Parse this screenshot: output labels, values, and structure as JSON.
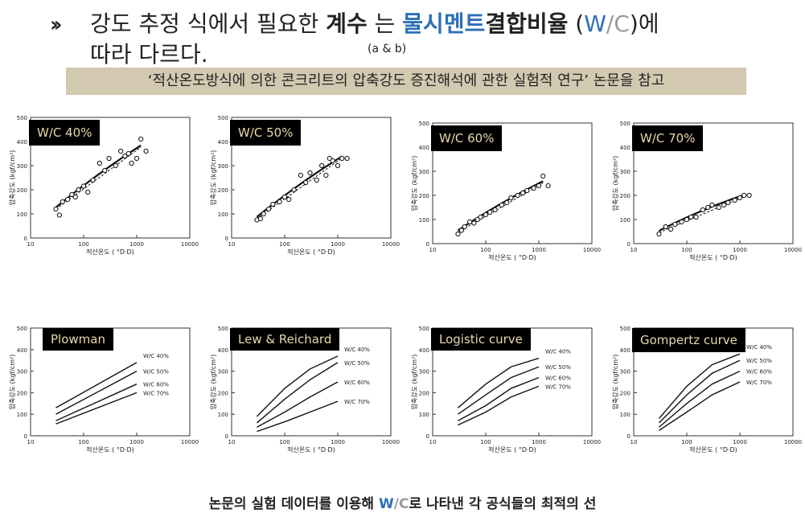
{
  "header": {
    "arrow": "››",
    "line1_pre": "강도 추정 식에서 필요한 ",
    "line1_bold": "계수",
    "line1_mid": " 는  ",
    "line1_blue1": "물시멘트",
    "line1_bold2": "결합비율",
    "line1_wc_open": "  (",
    "line1_wc_w": "W",
    "line1_wc_slash": "/",
    "line1_wc_c": "C",
    "line1_wc_close": ")에",
    "line2": "따라 다르다.",
    "sup": "(a & b)"
  },
  "banner": "‘적산온도방식에 의한 콘크리트의 압축강도 증진해석에 관한 실험적 연구’ 논문을 참고",
  "top_panels": [
    {
      "label": "W/C 40%"
    },
    {
      "label": "W/C 50%"
    },
    {
      "label": "W/C 60%"
    },
    {
      "label": "W/C 70%"
    }
  ],
  "bottom_panels": [
    {
      "label": "Plowman"
    },
    {
      "label": "Lew & Reichard"
    },
    {
      "label": "Logistic curve"
    },
    {
      "label": "Gompertz curve"
    }
  ],
  "axes": {
    "ylabel": "압축강도 (kgf/cm²)",
    "xlabel": "적산온도 ( °D·D)",
    "yticks": [
      "0",
      "100",
      "200",
      "300",
      "400",
      "500"
    ],
    "xticks": [
      "10",
      "100",
      "1000",
      "10000"
    ],
    "series_labels": [
      "W/C 40%",
      "W/C 50%",
      "W/C 60%",
      "W/C 70%"
    ]
  },
  "footer": {
    "pre": "논문의 실험 데이터를 이용해 ",
    "w": "W",
    "slash": "/",
    "c": "C",
    "post": "로 나타낸 각 공식들의 최적의 선"
  },
  "chart_data": [
    {
      "type": "scatter",
      "title": "W/C 40%",
      "xlabel": "적산온도 ( °D·D)",
      "ylabel": "압축강도 (kgf/cm²)",
      "x_scale": "log",
      "xlim": [
        10,
        10000
      ],
      "ylim": [
        0,
        500
      ],
      "x": [
        30,
        35,
        40,
        50,
        60,
        70,
        80,
        100,
        120,
        150,
        200,
        250,
        300,
        400,
        500,
        600,
        700,
        800,
        1000,
        1200,
        1500
      ],
      "y": [
        120,
        95,
        150,
        160,
        180,
        170,
        200,
        215,
        190,
        240,
        310,
        280,
        330,
        300,
        360,
        340,
        350,
        310,
        330,
        410,
        360
      ]
    },
    {
      "type": "scatter",
      "title": "W/C 50%",
      "xlabel": "적산온도 ( °D·D)",
      "ylabel": "압축강도 (kgf/cm²)",
      "x_scale": "log",
      "xlim": [
        10,
        10000
      ],
      "ylim": [
        0,
        500
      ],
      "x": [
        30,
        35,
        40,
        50,
        60,
        80,
        100,
        120,
        150,
        200,
        250,
        300,
        400,
        500,
        600,
        700,
        800,
        1000,
        1200,
        1500
      ],
      "y": [
        75,
        80,
        100,
        120,
        140,
        150,
        170,
        160,
        200,
        260,
        230,
        270,
        240,
        300,
        260,
        330,
        320,
        300,
        330,
        330
      ]
    },
    {
      "type": "scatter",
      "title": "W/C 60%",
      "xlabel": "적산온도 ( °D·D)",
      "ylabel": "압축강도 (kgf/cm²)",
      "x_scale": "log",
      "xlim": [
        10,
        10000
      ],
      "ylim": [
        0,
        500
      ],
      "x": [
        30,
        35,
        40,
        50,
        60,
        70,
        80,
        100,
        120,
        150,
        200,
        250,
        300,
        400,
        500,
        600,
        800,
        1000,
        1200,
        1500
      ],
      "y": [
        40,
        55,
        70,
        90,
        85,
        100,
        110,
        120,
        130,
        140,
        160,
        170,
        190,
        200,
        210,
        220,
        230,
        240,
        280,
        240
      ]
    },
    {
      "type": "scatter",
      "title": "W/C 70%",
      "xlabel": "적산온도 ( °D·D)",
      "ylabel": "압축강도 (kgf/cm²)",
      "x_scale": "log",
      "xlim": [
        10,
        10000
      ],
      "ylim": [
        0,
        500
      ],
      "x": [
        30,
        40,
        50,
        60,
        80,
        100,
        120,
        150,
        200,
        250,
        300,
        400,
        500,
        600,
        800,
        1000,
        1200,
        1500
      ],
      "y": [
        40,
        70,
        60,
        80,
        90,
        100,
        110,
        110,
        140,
        150,
        160,
        150,
        160,
        170,
        180,
        190,
        200,
        200
      ]
    },
    {
      "type": "line",
      "title": "Plowman",
      "x_scale": "log",
      "xlim": [
        10,
        10000
      ],
      "ylim": [
        0,
        500
      ],
      "series": [
        {
          "name": "W/C 40%",
          "x": [
            30,
            1000
          ],
          "y": [
            130,
            340
          ]
        },
        {
          "name": "W/C 50%",
          "x": [
            30,
            1000
          ],
          "y": [
            100,
            300
          ]
        },
        {
          "name": "W/C 60%",
          "x": [
            30,
            1000
          ],
          "y": [
            70,
            240
          ]
        },
        {
          "name": "W/C 70%",
          "x": [
            30,
            1000
          ],
          "y": [
            55,
            200
          ]
        }
      ]
    },
    {
      "type": "line",
      "title": "Lew & Reichard",
      "x_scale": "log",
      "xlim": [
        10,
        10000
      ],
      "ylim": [
        0,
        500
      ],
      "series": [
        {
          "name": "W/C 40%",
          "x": [
            30,
            100,
            300,
            1000
          ],
          "y": [
            90,
            220,
            310,
            370
          ]
        },
        {
          "name": "W/C 50%",
          "x": [
            30,
            100,
            300,
            1000
          ],
          "y": [
            60,
            170,
            260,
            340
          ]
        },
        {
          "name": "W/C 60%",
          "x": [
            30,
            100,
            300,
            1000
          ],
          "y": [
            40,
            110,
            180,
            250
          ]
        },
        {
          "name": "W/C 70%",
          "x": [
            30,
            100,
            300,
            1000
          ],
          "y": [
            20,
            65,
            110,
            160
          ]
        }
      ]
    },
    {
      "type": "line",
      "title": "Logistic curve",
      "x_scale": "log",
      "xlim": [
        10,
        10000
      ],
      "ylim": [
        0,
        500
      ],
      "series": [
        {
          "name": "W/C 40%",
          "x": [
            30,
            100,
            300,
            1000
          ],
          "y": [
            130,
            240,
            320,
            360
          ]
        },
        {
          "name": "W/C 50%",
          "x": [
            30,
            100,
            300,
            1000
          ],
          "y": [
            100,
            190,
            270,
            320
          ]
        },
        {
          "name": "W/C 60%",
          "x": [
            30,
            100,
            300,
            1000
          ],
          "y": [
            70,
            140,
            220,
            270
          ]
        },
        {
          "name": "W/C 70%",
          "x": [
            30,
            100,
            300,
            1000
          ],
          "y": [
            50,
            110,
            180,
            230
          ]
        }
      ]
    },
    {
      "type": "line",
      "title": "Gompertz curve",
      "x_scale": "log",
      "xlim": [
        10,
        10000
      ],
      "ylim": [
        0,
        500
      ],
      "series": [
        {
          "name": "W/C 40%",
          "x": [
            30,
            100,
            300,
            1000
          ],
          "y": [
            80,
            230,
            330,
            380
          ]
        },
        {
          "name": "W/C 50%",
          "x": [
            30,
            100,
            300,
            1000
          ],
          "y": [
            60,
            190,
            290,
            350
          ]
        },
        {
          "name": "W/C 60%",
          "x": [
            30,
            100,
            300,
            1000
          ],
          "y": [
            40,
            150,
            240,
            300
          ]
        },
        {
          "name": "W/C 70%",
          "x": [
            30,
            100,
            300,
            1000
          ],
          "y": [
            25,
            110,
            190,
            250
          ]
        }
      ]
    }
  ]
}
